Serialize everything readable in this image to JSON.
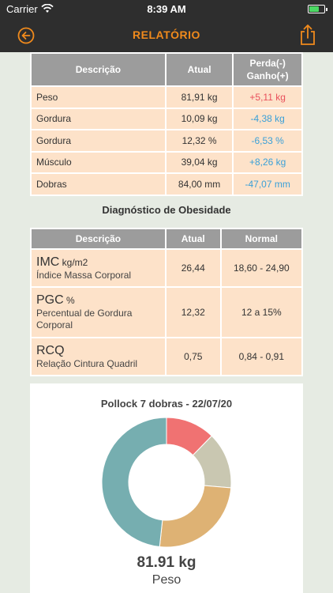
{
  "status_bar": {
    "carrier": "Carrier",
    "time": "8:39 AM"
  },
  "nav": {
    "title": "RELATÓRIO"
  },
  "comparison_table": {
    "headers": [
      "Descrição",
      "Atual",
      "Perda(-)\nGanho(+)"
    ],
    "rows": [
      {
        "label": "Peso",
        "current": "81,91 kg",
        "change": "+5,11 kg"
      },
      {
        "label": "Gordura",
        "current": "10,09 kg",
        "change": "-4,38 kg"
      },
      {
        "label": "Gordura",
        "current": "12,32 %",
        "change": "-6,53 %"
      },
      {
        "label": "Músculo",
        "current": "39,04 kg",
        "change": "+8,26 kg"
      },
      {
        "label": "Dobras",
        "current": "84,00 mm",
        "change": "-47,07 mm"
      }
    ]
  },
  "obesity": {
    "title": "Diagnóstico de Obesidade",
    "headers": [
      "Descrição",
      "Atual",
      "Normal"
    ],
    "rows": [
      {
        "name": "IMC",
        "unit": "kg/m2",
        "description": "Índice Massa Corporal",
        "current": "26,44",
        "normal": "18,60 - 24,90"
      },
      {
        "name": "PGC",
        "unit": "%",
        "description": "Percentual de Gordura Corporal",
        "current": "12,32",
        "normal": "12 a 15%"
      },
      {
        "name": "RCQ",
        "unit": "",
        "description": "Relação Cintura Quadril",
        "current": "0,75",
        "normal": "0,84 - 0,91"
      }
    ]
  },
  "chart": {
    "title": "Pollock 7 dobras - 22/07/20",
    "value": "81.91 kg",
    "label": "Peso"
  },
  "chart_data": {
    "type": "pie",
    "title": "Pollock 7 dobras - 22/07/20",
    "slices": [
      {
        "value": 10.09,
        "color": "#f07272"
      },
      {
        "value": 11.5,
        "color": "#c9c7b1"
      },
      {
        "value": 20.76,
        "color": "#deb274"
      },
      {
        "value": 39.56,
        "color": "#76aeb0"
      }
    ]
  }
}
